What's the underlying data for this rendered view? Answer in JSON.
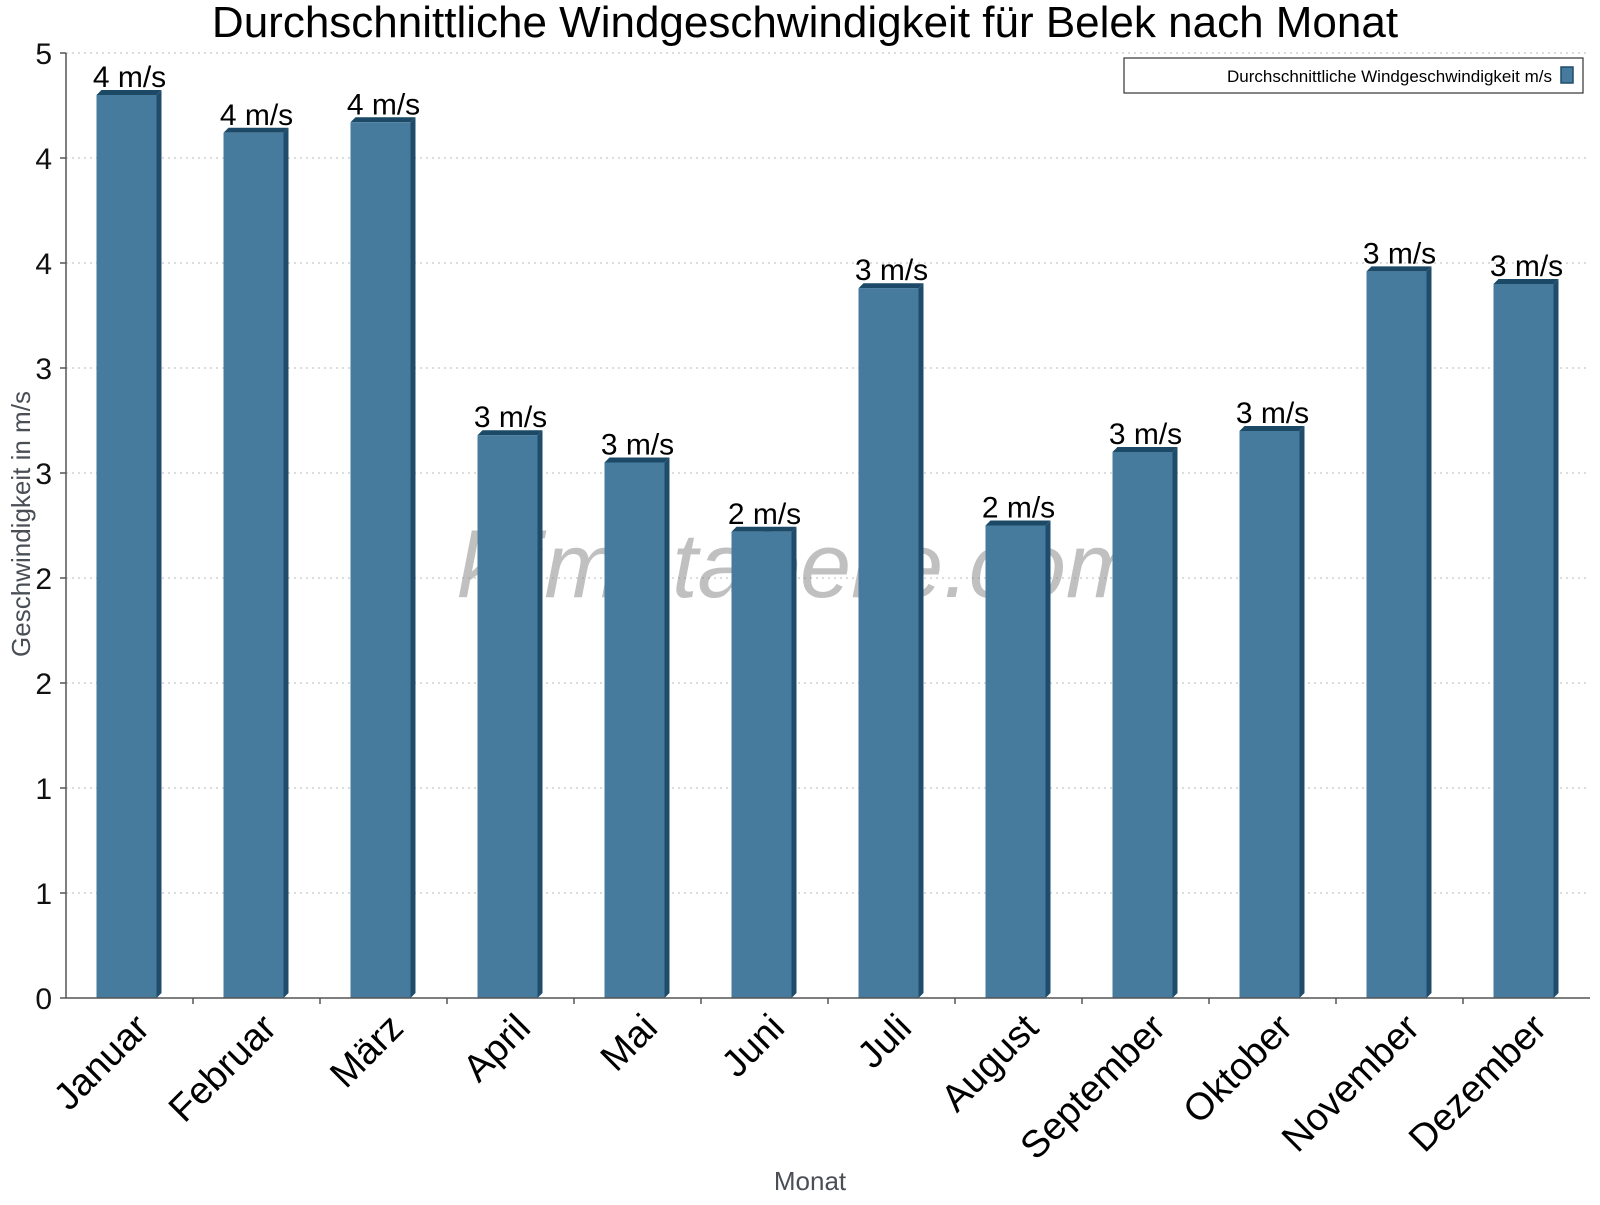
{
  "chart_data": {
    "type": "bar",
    "title": "Durchschnittliche Windgeschwindigkeit für Belek nach Monat",
    "xlabel": "Monat",
    "ylabel": "Geschwindigkeit in m/s",
    "categories": [
      "Januar",
      "Februar",
      "März",
      "April",
      "Mai",
      "Juni",
      "Juli",
      "August",
      "September",
      "Oktober",
      "November",
      "Dezember"
    ],
    "series": [
      {
        "name": "Durchschnittliche Windgeschwindigkeit m/s",
        "values": [
          4.3,
          4.12,
          4.17,
          2.68,
          2.55,
          2.22,
          3.38,
          2.25,
          2.6,
          2.7,
          3.46,
          3.4
        ],
        "labels": [
          "4 m/s",
          "4 m/s",
          "4 m/s",
          "3 m/s",
          "3 m/s",
          "2 m/s",
          "3 m/s",
          "2 m/s",
          "3 m/s",
          "3 m/s",
          "3 m/s",
          "3 m/s"
        ]
      }
    ],
    "ylim": [
      0,
      4.5
    ],
    "y_ticks": [
      0,
      0.5,
      1,
      1.5,
      2,
      2.5,
      3,
      3.5,
      4,
      4.5
    ],
    "y_tick_labels": [
      "0",
      "1",
      "1",
      "2",
      "2",
      "3",
      "3",
      "4",
      "4",
      "5"
    ],
    "grid": true,
    "legend_position": "top-right",
    "watermark": "klimatabelle.com",
    "colors": {
      "bar": "#477b9e",
      "bar_side": "#1f4c6b",
      "bar_top": "#1c4966",
      "grid": "#c8c8c8",
      "axis": "#555555"
    }
  }
}
